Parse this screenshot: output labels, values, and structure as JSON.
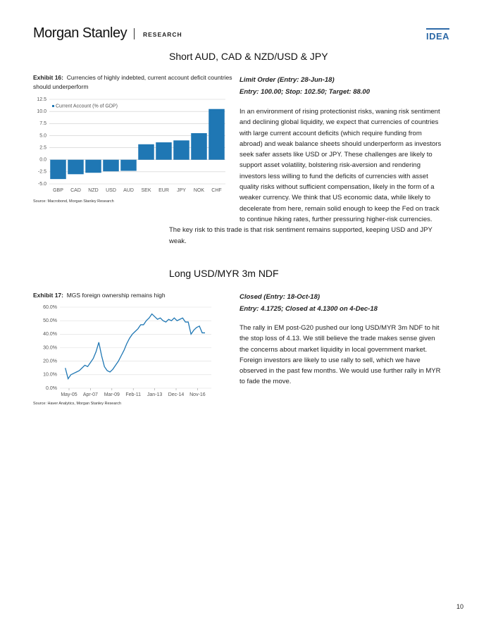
{
  "header": {
    "brand": "Morgan Stanley",
    "section": "RESEARCH",
    "tag": "IDEA"
  },
  "sections": [
    {
      "title": "Short AUD, CAD & NZD/USD & JPY",
      "trade": [
        "Limit Order (Entry: 28-Jun-18)",
        "Entry: 100.00; Stop: 102.50; Target: 88.00"
      ],
      "body": "In an environment of rising protectionist risks, waning risk sentiment and declining global liquidity, we expect that currencies of countries with large current account deficits (which require funding from abroad) and weak balance sheets should underperform as investors seek safer assets like USD or JPY. These challenges are likely to support asset volatility, bolstering risk-aversion and rendering investors less willing to fund the deficits of currencies with asset quality risks without sufficient compensation, likely in the form of a weaker currency. We think that US economic data, while likely to decelerate from here, remain solid enough to keep the Fed on track to continue hiking rates, further pressuring higher-risk currencies. The key risk to this trade is that risk sentiment remains supported, keeping USD and JPY weak."
    },
    {
      "title": "Long USD/MYR 3m NDF",
      "trade": [
        "Closed (Entry: 18-Oct-18)",
        "Entry: 4.1725; Closed at 4.1300 on 4-Dec-18"
      ],
      "body": "The rally in EM post-G20 pushed our long USD/MYR 3m NDF to hit the stop loss of 4.13. We still believe the trade makes sense given the concerns about market liquidity in local government market. Foreign investors are likely to use rally to sell, which we have observed in the past few months. We would use further rally in MYR to fade the move."
    }
  ],
  "chart_data": [
    {
      "type": "bar",
      "exhibit": "Exhibit 16:",
      "title": "Currencies of highly indebted, current account deficit countries should underperform",
      "source": "Source: Macrobond, Morgan Stanley Research",
      "categories": [
        "GBP",
        "CAD",
        "NZD",
        "USD",
        "AUD",
        "SEK",
        "EUR",
        "JPY",
        "NOK",
        "CHF"
      ],
      "series": [
        {
          "name": "Current Account (% of GDP)",
          "color": "#1f77b4",
          "values": [
            -4.0,
            -3.0,
            -2.7,
            -2.4,
            -2.3,
            3.2,
            3.6,
            4.0,
            5.5,
            10.5
          ]
        }
      ],
      "ylim": [
        -5,
        12.5
      ],
      "yticks": [
        {
          "value": -5,
          "label": "-5.0"
        },
        {
          "value": -2.5,
          "label": "-2.5"
        },
        {
          "value": 0,
          "label": "0.0"
        },
        2.5,
        {
          "value": 5,
          "label": "5.0"
        },
        7.5,
        {
          "value": 10,
          "label": "10.0"
        },
        12.5
      ],
      "grid": true
    },
    {
      "type": "line",
      "exhibit": "Exhibit 17:",
      "title": "MGS foreign ownership remains high",
      "source": "Source: Haver Analytics, Morgan Stanley Research",
      "x": [
        "Jan-05",
        "Apr-05",
        "Jul-05",
        "Oct-05",
        "Jan-06",
        "Apr-06",
        "Jul-06",
        "Oct-06",
        "Jan-07",
        "Apr-07",
        "Jul-07",
        "Oct-07",
        "Jan-08",
        "Apr-08",
        "Jul-08",
        "Oct-08",
        "Jan-09",
        "Apr-09",
        "Jul-09",
        "Oct-09",
        "Jan-10",
        "Apr-10",
        "Jul-10",
        "Oct-10",
        "Jan-11",
        "Apr-11",
        "Jul-11",
        "Oct-11",
        "Jan-12",
        "Apr-12",
        "Jul-12",
        "Oct-12",
        "Jan-13",
        "Apr-13",
        "Jul-13",
        "Oct-13",
        "Jan-14",
        "Apr-14",
        "Jul-14",
        "Oct-14",
        "Jan-15",
        "Apr-15",
        "Jul-15",
        "Oct-15",
        "Jan-16",
        "Apr-16",
        "Jul-16",
        "Oct-16",
        "Jan-17",
        "Apr-17",
        "Jul-17"
      ],
      "series": [
        {
          "color": "#1f77b4",
          "values": [
            15,
            7,
            10,
            11,
            12,
            13,
            15,
            17,
            16,
            19,
            22,
            27,
            34,
            24,
            16,
            13,
            12,
            14,
            17,
            20,
            24,
            28,
            33,
            37,
            40,
            42,
            44,
            47,
            47,
            50,
            52,
            55,
            53,
            51,
            52,
            50,
            49,
            51,
            50,
            52,
            50,
            51,
            52,
            49,
            49,
            40,
            43,
            45,
            46,
            41,
            41
          ]
        }
      ],
      "xticks": [
        "May-05",
        "Apr-07",
        "Mar-09",
        "Feb-11",
        "Jan-13",
        "Dec-14",
        "Nov-16"
      ],
      "ylim": [
        0,
        60
      ],
      "yticks": [
        {
          "value": 0,
          "label": "0.0%"
        },
        {
          "value": 10,
          "label": "10.0%"
        },
        {
          "value": 20,
          "label": "20.0%"
        },
        {
          "value": 30,
          "label": "30.0%"
        },
        {
          "value": 40,
          "label": "40.0%"
        },
        {
          "value": 50,
          "label": "50.0%"
        },
        {
          "value": 60,
          "label": "60.0%"
        }
      ],
      "grid": true
    }
  ],
  "page_number": "10"
}
